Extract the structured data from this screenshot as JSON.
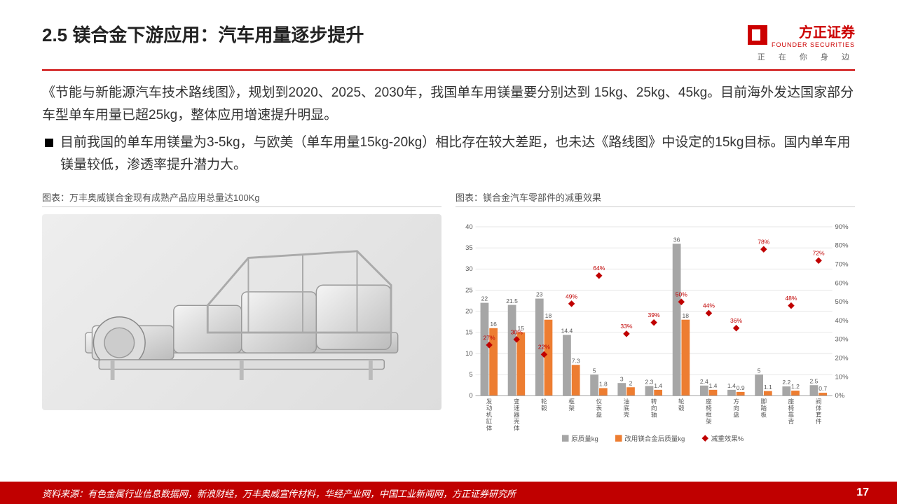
{
  "header": {
    "title": "2.5 镁合金下游应用：汽车用量逐步提升",
    "logo_text": "方正证券",
    "logo_sub": "FOUNDER SECURITIES",
    "tagline": "正 在 你 身 边"
  },
  "body": {
    "para1": "《节能与新能源汽车技术路线图》，规划到2020、2025、2030年，我国单车用镁量要分别达到 15kg、25kg、45kg。目前海外发达国家部分车型单车用量已超25kg，整体应用增速提升明显。",
    "bullet1": "目前我国的单车用镁量为3-5kg，与欧美（单车用量15kg-20kg）相比存在较大差距，也未达《路线图》中设定的15kg目标。国内单车用镁量较低，渗透率提升潜力大。"
  },
  "chart_left": {
    "caption": "图表：万丰奥威镁合金现有成熟产品应用总量达100Kg"
  },
  "chart_right": {
    "caption": "图表：镁合金汽车零部件的减重效果",
    "type": "bar_with_markers",
    "categories": [
      "发动机缸体",
      "变速器壳体",
      "轮毂",
      "框架",
      "仪表盘",
      "油底壳",
      "转向轴",
      "轮毂",
      "座椅框架",
      "方向盘",
      "脚踏板",
      "座椅靠背",
      "阀体套件"
    ],
    "series_original": [
      22,
      21.5,
      23,
      14.4,
      5,
      3,
      2.3,
      36,
      2.4,
      1.4,
      5,
      2.2,
      2.5
    ],
    "series_mg": [
      16,
      15,
      18,
      7.3,
      1.8,
      2,
      1.4,
      18,
      1.4,
      0.9,
      1.1,
      1.2,
      0.7
    ],
    "series_pct": [
      27,
      30,
      22,
      49,
      64,
      33,
      39,
      50,
      44,
      36,
      78,
      48,
      72
    ],
    "left_y": {
      "min": 0,
      "max": 40,
      "step": 5
    },
    "right_y": {
      "min": 0,
      "max": 90,
      "step": 10
    },
    "colors": {
      "original": "#a6a6a6",
      "mg": "#ed7d31",
      "marker": "#c00000",
      "grid": "#e6e6e6",
      "text": "#595959"
    },
    "legend": [
      "原质量kg",
      "改用镁合金后质量kg",
      "减重效果%"
    ],
    "label_fontsize": 9,
    "axis_fontsize": 10
  },
  "footer": {
    "source": "资料来源：有色金属行业信息数据网，新浪财经，万丰奥威宣传材料，华经产业网，中国工业新闻网，方正证券研究所",
    "page": "17"
  }
}
